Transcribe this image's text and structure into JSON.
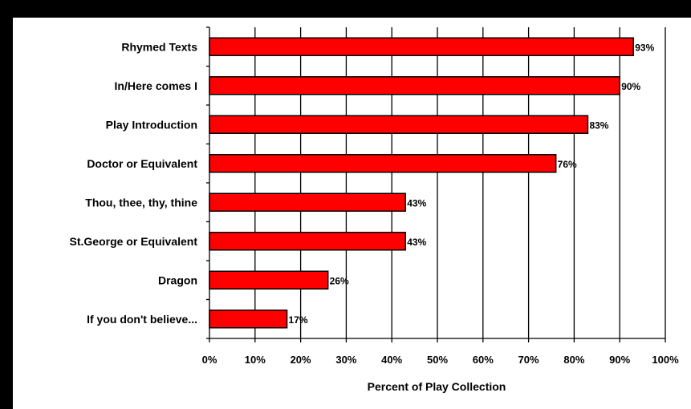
{
  "chart_data": {
    "type": "bar",
    "orientation": "horizontal",
    "categories": [
      "Rhymed Texts",
      "In/Here comes I",
      "Play Introduction",
      "Doctor or Equivalent",
      "Thou, thee, thy, thine",
      "St.George or Equivalent",
      "Dragon",
      "If you don't believe..."
    ],
    "values": [
      93,
      90,
      83,
      76,
      43,
      43,
      26,
      17
    ],
    "data_labels": [
      "93%",
      "90%",
      "83%",
      "76%",
      "43%",
      "43%",
      "26%",
      "17%"
    ],
    "title": "",
    "xlabel": "Percent of Play Collection",
    "ylabel": "",
    "xlim": [
      0,
      100
    ],
    "x_ticks": [
      0,
      10,
      20,
      30,
      40,
      50,
      60,
      70,
      80,
      90,
      100
    ],
    "x_tick_labels": [
      "0%",
      "10%",
      "20%",
      "30%",
      "40%",
      "50%",
      "60%",
      "70%",
      "80%",
      "90%",
      "100%"
    ],
    "grid": "vertical",
    "legend": "none",
    "colors": {
      "bar_fill": "#ff0000",
      "bar_stroke": "#000000",
      "plot_background": "#ffffff",
      "frame": "#000000",
      "gridline": "#000000",
      "text": "#000000"
    }
  }
}
